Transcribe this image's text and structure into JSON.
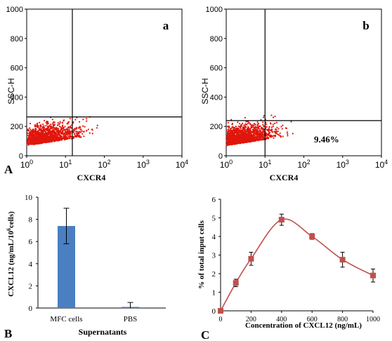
{
  "colors": {
    "dot": "#e0160c",
    "bar": "#4a7fc1",
    "line": "#c0504d",
    "marker": "#c0504d",
    "axis": "#000000"
  },
  "panel_labels": {
    "A": "A",
    "B": "B",
    "C": "C"
  },
  "chart_data": [
    {
      "type": "scatter",
      "panel": "a",
      "panel_tag": "a",
      "xlabel": "CXCR4",
      "ylabel": "SSC-H",
      "x_scale": "log",
      "xlim": [
        1,
        10000
      ],
      "ylim": [
        0,
        1000
      ],
      "xticks": [
        {
          "base": "10",
          "exp": "0"
        },
        {
          "base": "10",
          "exp": "1"
        },
        {
          "base": "10",
          "exp": "2"
        },
        {
          "base": "10",
          "exp": "3"
        },
        {
          "base": "10",
          "exp": "4"
        }
      ],
      "yticks": [
        "0",
        "200",
        "400",
        "600",
        "800",
        "1000"
      ],
      "gate": {
        "x": 15,
        "y": 265
      },
      "annotation": ""
    },
    {
      "type": "scatter",
      "panel": "b",
      "panel_tag": "b",
      "xlabel": "CXCR4",
      "ylabel": "SSC-H",
      "x_scale": "log",
      "xlim": [
        1,
        10000
      ],
      "ylim": [
        0,
        1000
      ],
      "xticks": [
        {
          "base": "10",
          "exp": "0"
        },
        {
          "base": "10",
          "exp": "1"
        },
        {
          "base": "10",
          "exp": "2"
        },
        {
          "base": "10",
          "exp": "3"
        },
        {
          "base": "10",
          "exp": "4"
        }
      ],
      "yticks": [
        "0",
        "200",
        "400",
        "600",
        "800",
        "1000"
      ],
      "gate": {
        "x": 10,
        "y": 240
      },
      "annotation": "9.46%"
    },
    {
      "type": "bar",
      "panel": "B",
      "categories": [
        "MFC cells",
        "PBS"
      ],
      "values": [
        7.4,
        0.1
      ],
      "errors": [
        1.6,
        0.4
      ],
      "xlabel": "Supernatants",
      "ylabel": {
        "main": "CXCL12 (ng/mL/10",
        "sup": "6",
        "tail": "cells)"
      },
      "ylim": [
        0,
        10
      ],
      "yticks": [
        "0",
        "2",
        "4",
        "6",
        "8",
        "10"
      ]
    },
    {
      "type": "line",
      "panel": "C",
      "x": [
        0,
        100,
        200,
        400,
        600,
        800,
        1000
      ],
      "y": [
        0,
        1.5,
        2.8,
        4.9,
        4.0,
        2.75,
        1.9
      ],
      "errors": [
        0,
        0.2,
        0.35,
        0.3,
        0.15,
        0.4,
        0.35
      ],
      "xlabel": "Concentration of CXCL12 (ng/mL)",
      "ylabel": "% of total input cells",
      "xlim": [
        0,
        1000
      ],
      "ylim": [
        0,
        6
      ],
      "xticks": [
        "0",
        "200",
        "400",
        "600",
        "800",
        "1000"
      ],
      "yticks": [
        "0",
        "1",
        "2",
        "3",
        "4",
        "5",
        "6"
      ]
    }
  ]
}
